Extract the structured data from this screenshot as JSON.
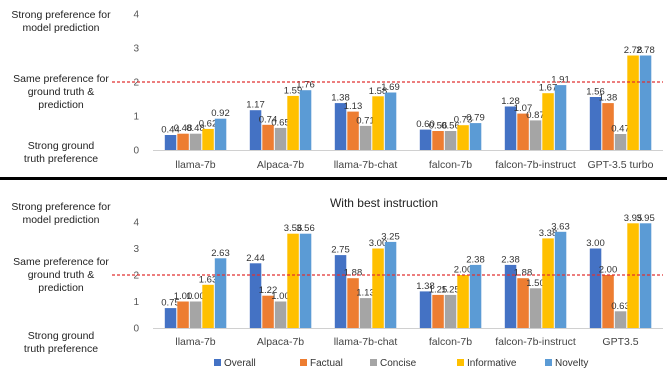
{
  "y_descriptions": {
    "top": [
      "Strong preference for",
      "model prediction"
    ],
    "middle": [
      "Same preference for",
      "ground truth &",
      "prediction"
    ],
    "bottom": [
      "Strong ground",
      "truth preference"
    ]
  },
  "colors": {
    "Overall": "#4472c4",
    "Factual": "#ed7d31",
    "Concise": "#a5a5a5",
    "Informative": "#ffc000",
    "Novelty": "#5b9bd5",
    "reference_line": "#e03030",
    "divider": "#000000"
  },
  "chart_data": [
    {
      "type": "bar",
      "title": "",
      "categories": [
        "llama-7b",
        "Alpaca-7b",
        "llama-7b-chat",
        "falcon-7b",
        "falcon-7b-instruct",
        "GPT-3.5 turbo"
      ],
      "series": [
        {
          "name": "Overall",
          "values": [
            0.44,
            1.17,
            1.38,
            0.6,
            1.28,
            1.56
          ]
        },
        {
          "name": "Factual",
          "values": [
            0.48,
            0.74,
            1.13,
            0.56,
            1.07,
            1.38
          ]
        },
        {
          "name": "Concise",
          "values": [
            0.48,
            0.65,
            0.71,
            0.56,
            0.87,
            0.47
          ]
        },
        {
          "name": "Informative",
          "values": [
            0.62,
            1.59,
            1.58,
            0.73,
            1.67,
            2.78
          ]
        },
        {
          "name": "Novelty",
          "values": [
            0.92,
            1.76,
            1.69,
            0.79,
            1.91,
            2.78
          ]
        }
      ],
      "data_labels": [
        [
          "0.44",
          "0.48",
          "0.48",
          "0.62",
          "0.92"
        ],
        [
          "1.17",
          "0.74",
          "0.65",
          "1.59",
          "1.76"
        ],
        [
          "1.38",
          "1.13",
          "0.71",
          "1.58",
          "1.69"
        ],
        [
          "0.60",
          "0.56",
          "0.56",
          "0.73",
          "0.79"
        ],
        [
          "1.28",
          "1.07",
          "0.87",
          "1.67",
          "1.91"
        ],
        [
          "1.56",
          "1.38",
          "0.47",
          "2.78",
          "2.78"
        ]
      ],
      "yticks": [
        "0",
        "1",
        "2",
        "3",
        "4"
      ],
      "ylim": [
        0,
        4
      ],
      "reference_line": 2,
      "grid": false
    },
    {
      "type": "bar",
      "title": "With best instruction",
      "categories": [
        "llama-7b",
        "Alpaca-7b",
        "llama-7b-chat",
        "falcon-7b",
        "falcon-7b-instruct",
        "GPT3.5"
      ],
      "series": [
        {
          "name": "Overall",
          "values": [
            0.75,
            2.44,
            2.75,
            1.38,
            2.38,
            3.0
          ]
        },
        {
          "name": "Factual",
          "values": [
            1.0,
            1.22,
            1.88,
            1.25,
            1.88,
            2.0
          ]
        },
        {
          "name": "Concise",
          "values": [
            1.0,
            1.0,
            1.13,
            1.25,
            1.5,
            0.63
          ]
        },
        {
          "name": "Informative",
          "values": [
            1.63,
            3.56,
            3.0,
            2.0,
            3.38,
            3.95
          ]
        },
        {
          "name": "Novelty",
          "values": [
            2.63,
            3.56,
            3.25,
            2.38,
            3.63,
            3.95
          ]
        }
      ],
      "data_labels": [
        [
          "0.75",
          "1.00",
          "1.00",
          "1.63",
          "2.63"
        ],
        [
          "2.44",
          "1.22",
          "1.00",
          "3.56",
          "3.56"
        ],
        [
          "2.75",
          "1.88",
          "1.13",
          "3.00",
          "3.25"
        ],
        [
          "1.38",
          "1.25",
          "1.25",
          "2.00",
          "2.38"
        ],
        [
          "2.38",
          "1.88",
          "1.50",
          "3.38",
          "3.63"
        ],
        [
          "3.00",
          "2.00",
          "0.63",
          "3.95",
          "3.95"
        ]
      ],
      "yticks": [
        "0",
        "1",
        "2",
        "3",
        "4"
      ],
      "ylim": [
        0,
        4
      ],
      "reference_line": 2,
      "grid": false,
      "legend_position": "bottom"
    }
  ]
}
